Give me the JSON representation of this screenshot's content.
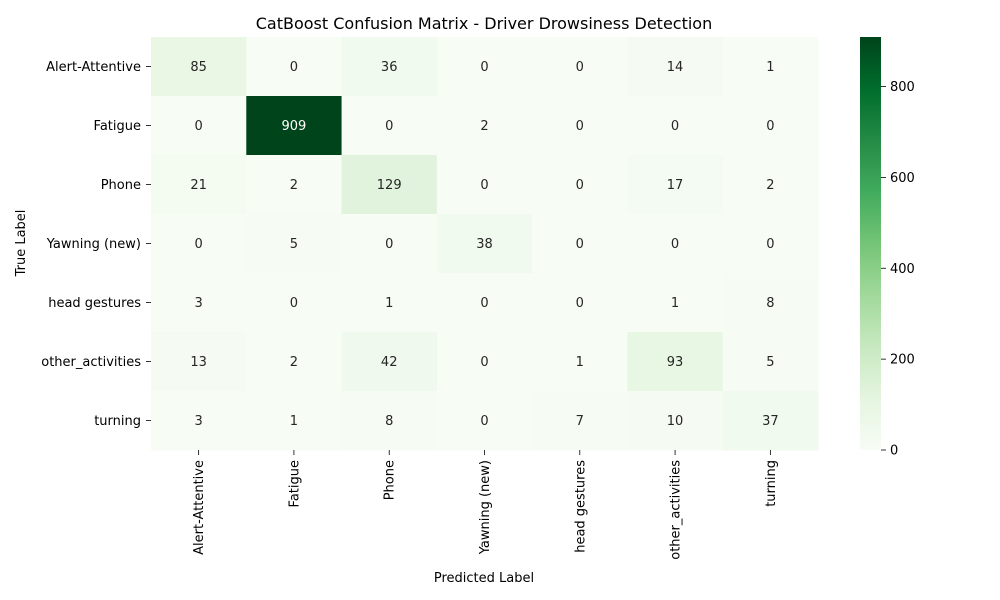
{
  "chart_data": {
    "type": "heatmap",
    "title": "CatBoost Confusion Matrix - Driver Drowsiness Detection",
    "xlabel": "Predicted Label",
    "ylabel": "True Label",
    "x_categories": [
      "Alert-Attentive",
      "Fatigue",
      "Phone",
      "Yawning (new)",
      "head gestures",
      "other_activities",
      "turning"
    ],
    "y_categories": [
      "Alert-Attentive",
      "Fatigue",
      "Phone",
      "Yawning (new)",
      "head gestures",
      "other_activities",
      "turning"
    ],
    "values": [
      [
        85,
        0,
        36,
        0,
        0,
        14,
        1
      ],
      [
        0,
        909,
        0,
        2,
        0,
        0,
        0
      ],
      [
        21,
        2,
        129,
        0,
        0,
        17,
        2
      ],
      [
        0,
        5,
        0,
        38,
        0,
        0,
        0
      ],
      [
        3,
        0,
        1,
        0,
        0,
        1,
        8
      ],
      [
        13,
        2,
        42,
        0,
        1,
        93,
        5
      ],
      [
        3,
        1,
        8,
        0,
        7,
        10,
        37
      ]
    ],
    "colorscale": "Greens",
    "colorbar": {
      "range": [
        0,
        909
      ],
      "ticks": [
        0,
        200,
        400,
        600,
        800
      ]
    },
    "grid": false
  }
}
